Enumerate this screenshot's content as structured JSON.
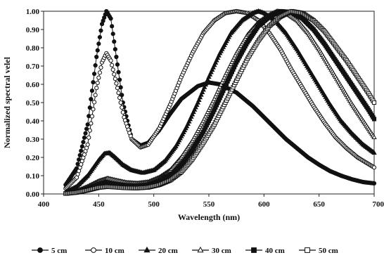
{
  "chart_data": {
    "type": "line",
    "title": "",
    "xlabel": "Wavelength (nm)",
    "ylabel": "Normalized spectral velel",
    "xlim": [
      400,
      700
    ],
    "ylim": [
      0,
      1.0
    ],
    "xticks": [
      "400",
      "450",
      "500",
      "550",
      "600",
      "650",
      "700"
    ],
    "yticks": [
      "0.00",
      "0.10",
      "0.20",
      "0.30",
      "0.40",
      "0.50",
      "0.60",
      "0.70",
      "0.80",
      "0.90",
      "1.00"
    ],
    "grid": false,
    "legend_position": "bottom",
    "series": [
      {
        "name": "5 cm",
        "marker": "filled-circle",
        "points": [
          [
            420,
            0.05
          ],
          [
            430,
            0.14
          ],
          [
            440,
            0.38
          ],
          [
            448,
            0.75
          ],
          [
            453,
            0.93
          ],
          [
            457,
            1.0
          ],
          [
            461,
            0.96
          ],
          [
            466,
            0.75
          ],
          [
            472,
            0.5
          ],
          [
            480,
            0.3
          ],
          [
            488,
            0.265
          ],
          [
            495,
            0.28
          ],
          [
            505,
            0.35
          ],
          [
            515,
            0.44
          ],
          [
            525,
            0.52
          ],
          [
            540,
            0.59
          ],
          [
            550,
            0.61
          ],
          [
            560,
            0.6
          ],
          [
            575,
            0.555
          ],
          [
            590,
            0.48
          ],
          [
            600,
            0.42
          ],
          [
            610,
            0.36
          ],
          [
            620,
            0.3
          ],
          [
            630,
            0.25
          ],
          [
            640,
            0.2
          ],
          [
            650,
            0.16
          ],
          [
            660,
            0.125
          ],
          [
            670,
            0.1
          ],
          [
            680,
            0.08
          ],
          [
            690,
            0.065
          ],
          [
            700,
            0.058
          ]
        ]
      },
      {
        "name": "10 cm",
        "marker": "open-circle",
        "points": [
          [
            420,
            0.03
          ],
          [
            430,
            0.09
          ],
          [
            440,
            0.27
          ],
          [
            448,
            0.58
          ],
          [
            453,
            0.72
          ],
          [
            457,
            0.77
          ],
          [
            461,
            0.73
          ],
          [
            467,
            0.58
          ],
          [
            473,
            0.42
          ],
          [
            480,
            0.3
          ],
          [
            488,
            0.255
          ],
          [
            495,
            0.27
          ],
          [
            505,
            0.36
          ],
          [
            515,
            0.49
          ],
          [
            525,
            0.64
          ],
          [
            535,
            0.77
          ],
          [
            545,
            0.88
          ],
          [
            555,
            0.95
          ],
          [
            565,
            0.99
          ],
          [
            575,
            1.0
          ],
          [
            585,
            0.99
          ],
          [
            595,
            0.95
          ],
          [
            605,
            0.88
          ],
          [
            615,
            0.79
          ],
          [
            625,
            0.68
          ],
          [
            635,
            0.58
          ],
          [
            645,
            0.48
          ],
          [
            655,
            0.39
          ],
          [
            665,
            0.31
          ],
          [
            675,
            0.25
          ],
          [
            685,
            0.2
          ],
          [
            700,
            0.145
          ]
        ]
      },
      {
        "name": "20 cm",
        "marker": "filled-triangle",
        "points": [
          [
            420,
            0.01
          ],
          [
            430,
            0.04
          ],
          [
            440,
            0.1
          ],
          [
            450,
            0.185
          ],
          [
            455,
            0.22
          ],
          [
            460,
            0.225
          ],
          [
            465,
            0.2
          ],
          [
            472,
            0.16
          ],
          [
            480,
            0.13
          ],
          [
            490,
            0.115
          ],
          [
            500,
            0.13
          ],
          [
            510,
            0.18
          ],
          [
            520,
            0.26
          ],
          [
            530,
            0.37
          ],
          [
            540,
            0.5
          ],
          [
            550,
            0.64
          ],
          [
            560,
            0.77
          ],
          [
            570,
            0.88
          ],
          [
            580,
            0.95
          ],
          [
            590,
            0.99
          ],
          [
            595,
            1.0
          ],
          [
            600,
            0.99
          ],
          [
            610,
            0.95
          ],
          [
            620,
            0.88
          ],
          [
            630,
            0.79
          ],
          [
            640,
            0.69
          ],
          [
            650,
            0.59
          ],
          [
            660,
            0.49
          ],
          [
            670,
            0.4
          ],
          [
            680,
            0.33
          ],
          [
            690,
            0.27
          ],
          [
            700,
            0.225
          ]
        ]
      },
      {
        "name": "30 cm",
        "marker": "open-triangle",
        "points": [
          [
            420,
            0.005
          ],
          [
            430,
            0.015
          ],
          [
            440,
            0.04
          ],
          [
            450,
            0.07
          ],
          [
            458,
            0.085
          ],
          [
            465,
            0.075
          ],
          [
            475,
            0.062
          ],
          [
            485,
            0.058
          ],
          [
            495,
            0.065
          ],
          [
            505,
            0.09
          ],
          [
            515,
            0.13
          ],
          [
            525,
            0.2
          ],
          [
            535,
            0.29
          ],
          [
            545,
            0.4
          ],
          [
            555,
            0.52
          ],
          [
            565,
            0.65
          ],
          [
            575,
            0.77
          ],
          [
            585,
            0.87
          ],
          [
            595,
            0.94
          ],
          [
            605,
            0.98
          ],
          [
            612,
            1.0
          ],
          [
            620,
            0.99
          ],
          [
            630,
            0.95
          ],
          [
            640,
            0.88
          ],
          [
            650,
            0.79
          ],
          [
            660,
            0.69
          ],
          [
            670,
            0.59
          ],
          [
            680,
            0.49
          ],
          [
            690,
            0.4
          ],
          [
            700,
            0.31
          ]
        ]
      },
      {
        "name": "40 cm",
        "marker": "filled-square",
        "points": [
          [
            420,
            0.003
          ],
          [
            430,
            0.01
          ],
          [
            440,
            0.03
          ],
          [
            450,
            0.05
          ],
          [
            458,
            0.06
          ],
          [
            465,
            0.055
          ],
          [
            475,
            0.047
          ],
          [
            485,
            0.045
          ],
          [
            495,
            0.05
          ],
          [
            505,
            0.07
          ],
          [
            515,
            0.1
          ],
          [
            525,
            0.16
          ],
          [
            535,
            0.24
          ],
          [
            545,
            0.34
          ],
          [
            555,
            0.46
          ],
          [
            565,
            0.59
          ],
          [
            575,
            0.72
          ],
          [
            585,
            0.83
          ],
          [
            595,
            0.92
          ],
          [
            605,
            0.97
          ],
          [
            615,
            1.0
          ],
          [
            625,
            0.995
          ],
          [
            635,
            0.96
          ],
          [
            645,
            0.9
          ],
          [
            655,
            0.82
          ],
          [
            665,
            0.73
          ],
          [
            675,
            0.64
          ],
          [
            685,
            0.55
          ],
          [
            695,
            0.46
          ],
          [
            700,
            0.41
          ]
        ]
      },
      {
        "name": "50 cm",
        "marker": "open-square",
        "points": [
          [
            420,
            0.002
          ],
          [
            430,
            0.008
          ],
          [
            440,
            0.02
          ],
          [
            450,
            0.035
          ],
          [
            458,
            0.04
          ],
          [
            465,
            0.037
          ],
          [
            475,
            0.033
          ],
          [
            485,
            0.032
          ],
          [
            495,
            0.036
          ],
          [
            505,
            0.05
          ],
          [
            515,
            0.075
          ],
          [
            525,
            0.12
          ],
          [
            535,
            0.19
          ],
          [
            545,
            0.28
          ],
          [
            555,
            0.38
          ],
          [
            565,
            0.5
          ],
          [
            575,
            0.62
          ],
          [
            585,
            0.74
          ],
          [
            595,
            0.84
          ],
          [
            605,
            0.92
          ],
          [
            615,
            0.97
          ],
          [
            625,
            1.0
          ],
          [
            635,
            0.99
          ],
          [
            645,
            0.95
          ],
          [
            655,
            0.89
          ],
          [
            665,
            0.81
          ],
          [
            675,
            0.73
          ],
          [
            685,
            0.64
          ],
          [
            695,
            0.55
          ],
          [
            700,
            0.5
          ]
        ]
      }
    ]
  }
}
